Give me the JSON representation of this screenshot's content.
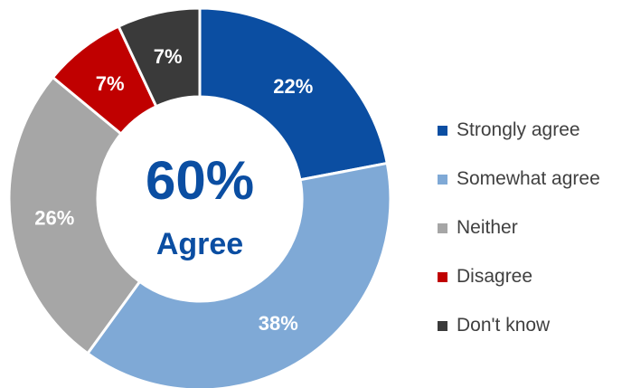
{
  "chart_data": {
    "type": "pie",
    "donut": true,
    "categories": [
      "Strongly agree",
      "Somewhat agree",
      "Neither",
      "Disagree",
      "Don't know"
    ],
    "values": [
      22,
      38,
      26,
      7,
      7
    ],
    "value_labels": [
      "22%",
      "38%",
      "26%",
      "7%",
      "7%"
    ],
    "colors": [
      "#0B4EA2",
      "#7FA9D6",
      "#A6A6A6",
      "#C00000",
      "#3A3A3A"
    ],
    "center_text": {
      "value": "60%",
      "caption": "Agree",
      "color": "#0B4EA2"
    },
    "legend_placement": "right"
  }
}
